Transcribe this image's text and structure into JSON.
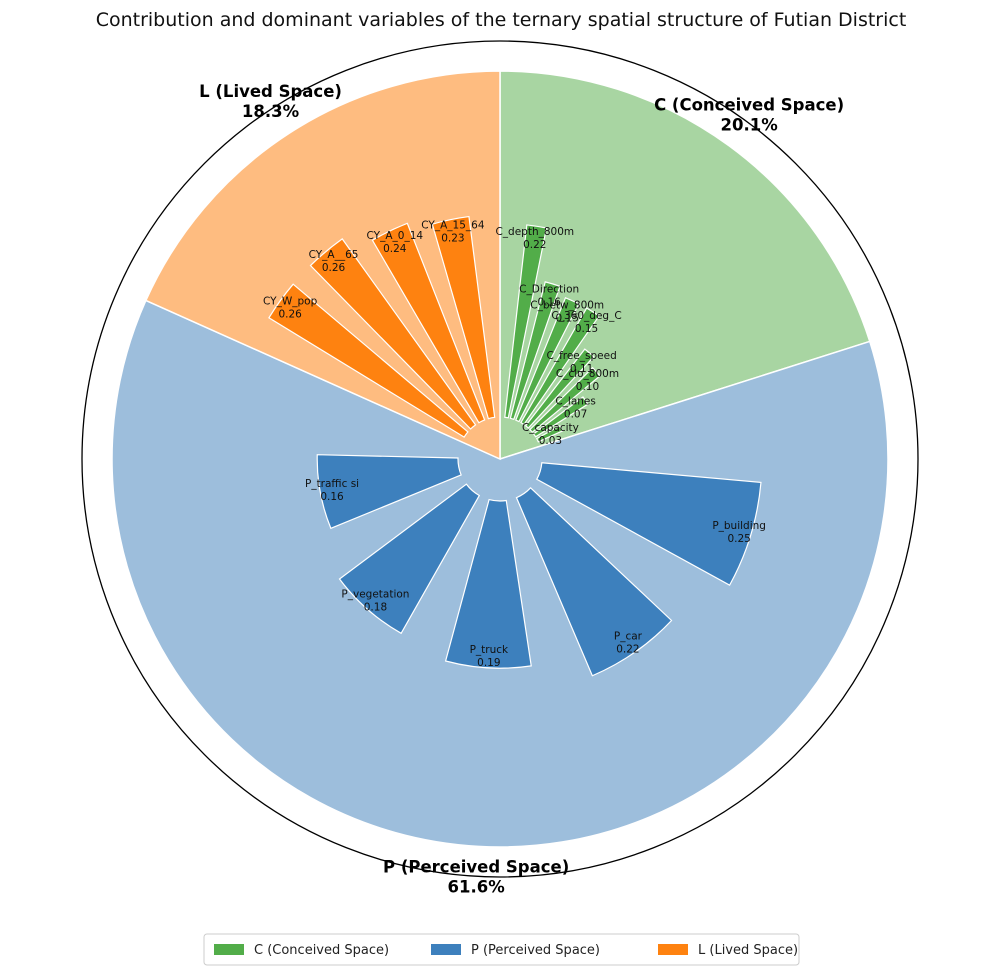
{
  "chart_data": {
    "type": "pie",
    "title": "Contribution and dominant variables of the ternary spatial structure of Futian District",
    "sections": [
      {
        "key": "C",
        "name": "C (Conceived Space)",
        "percent": 20.1,
        "percent_label": "20.1%",
        "wedge_color": "#a8d5a2",
        "bar_color": "#52ad49",
        "variables": [
          {
            "name": "C_depth_800m",
            "value": 0.22
          },
          {
            "name": "C_Direction",
            "value": 0.16
          },
          {
            "name": "C_betw_800m",
            "value": 0.15
          },
          {
            "name": "C_360_deg_C",
            "value": 0.15
          },
          {
            "name": "C_free_speed",
            "value": 0.11
          },
          {
            "name": "C_clo_800m",
            "value": 0.1
          },
          {
            "name": "C_lanes",
            "value": 0.07
          },
          {
            "name": "C_capacity",
            "value": 0.03
          }
        ]
      },
      {
        "key": "P",
        "name": "P (Perceived Space)",
        "percent": 61.6,
        "percent_label": "61.6%",
        "wedge_color": "#9dbedc",
        "bar_color": "#3d80bd",
        "variables": [
          {
            "name": "P_building",
            "value": 0.25
          },
          {
            "name": "P_car",
            "value": 0.22
          },
          {
            "name": "P_truck",
            "value": 0.19
          },
          {
            "name": "P_vegetation",
            "value": 0.18
          },
          {
            "name": "P_traffic si",
            "value": 0.16
          }
        ]
      },
      {
        "key": "L",
        "name": "L (Lived Space)",
        "percent": 18.3,
        "percent_label": "18.3%",
        "wedge_color": "#febc80",
        "bar_color": "#fe8210",
        "variables": [
          {
            "name": "CY_W_pop",
            "value": 0.26
          },
          {
            "name": "CY_A__65",
            "value": 0.26
          },
          {
            "name": "CY_A_0_14",
            "value": 0.24
          },
          {
            "name": "CY_A_15_64",
            "value": 0.23
          }
        ]
      }
    ],
    "value_format": "0.00",
    "legend": {
      "position": "bottom-center",
      "entries": [
        "C (Conceived Space)",
        "P (Perceived Space)",
        "L (Lived Space)"
      ]
    }
  }
}
